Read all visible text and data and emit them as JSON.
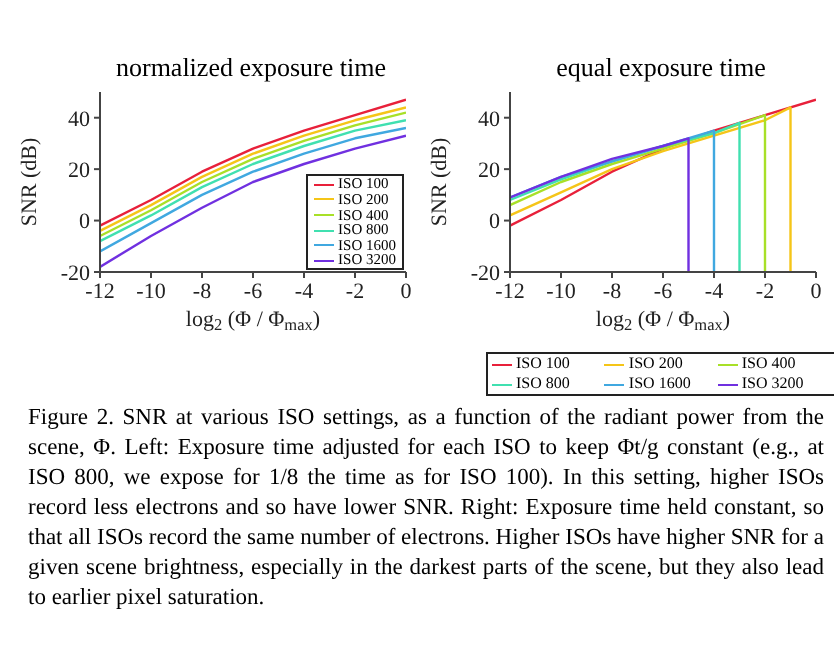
{
  "chart_data": [
    {
      "type": "line",
      "title": "normalized exposure time",
      "xlabel": "log$_{2}$ (Φ / Φ$_{max}$)",
      "ylabel": "SNR (dB)",
      "xlim": [
        -12,
        0
      ],
      "xticks": [
        -12,
        -10,
        -8,
        -6,
        -4,
        -2,
        0
      ],
      "ylim": [
        -20,
        50
      ],
      "yticks": [
        -20,
        0,
        20,
        40
      ],
      "legend": "bottom right",
      "series": [
        {
          "name": "ISO 100",
          "color": "#e8203a",
          "x": [
            -12,
            -10,
            -8,
            -6,
            -4,
            -2,
            0
          ],
          "values": [
            -2,
            8,
            19,
            28,
            35,
            41,
            47
          ]
        },
        {
          "name": "ISO 200",
          "color": "#f5c518",
          "x": [
            -12,
            -10,
            -8,
            -6,
            -4,
            -2,
            0
          ],
          "values": [
            -4,
            6,
            17,
            26,
            33,
            39,
            44
          ]
        },
        {
          "name": "ISO 400",
          "color": "#a8e028",
          "x": [
            -12,
            -10,
            -8,
            -6,
            -4,
            -2,
            0
          ],
          "values": [
            -6,
            4,
            15,
            24,
            31,
            37,
            42
          ]
        },
        {
          "name": "ISO 800",
          "color": "#40e0b0",
          "x": [
            -12,
            -10,
            -8,
            -6,
            -4,
            -2,
            0
          ],
          "values": [
            -8,
            2,
            13,
            22,
            29,
            35,
            39
          ]
        },
        {
          "name": "ISO 1600",
          "color": "#40a8e0",
          "x": [
            -12,
            -10,
            -8,
            -6,
            -4,
            -2,
            0
          ],
          "values": [
            -12,
            -1,
            10,
            19,
            26,
            32,
            36
          ]
        },
        {
          "name": "ISO 3200",
          "color": "#7030e0",
          "x": [
            -12,
            -10,
            -8,
            -6,
            -4,
            -2,
            0
          ],
          "values": [
            -18,
            -6,
            5,
            15,
            22,
            28,
            33
          ]
        }
      ],
      "annotations": [
        "Figure 2. SNR at various ISO settings, as a function of the radiant power from the scene, Φ. Left: Exposure time adjusted for each ISO to keep Φt/g constant (e.g., at ISO 800, we expose for 1/8 the time as for ISO 100). In this setting, higher ISOs record less electrons and so have lower SNR. Right: Exposure time held constant, so that all ISOs record the same number of electrons. Higher ISOs have higher SNR for a given scene brightness, especially in the darkest parts of the scene, but they also lead to earlier pixel saturation."
      ]
    },
    {
      "type": "line",
      "title": "equal exposure time",
      "xlabel": "log$_{2}$ (Φ / Φ$_{max}$)",
      "ylabel": "SNR (dB)",
      "xlim": [
        -12,
        0
      ],
      "xticks": [
        -12,
        -10,
        -8,
        -6,
        -4,
        -2,
        0
      ],
      "ylim": [
        -20,
        50
      ],
      "yticks": [
        -20,
        0,
        20,
        40
      ],
      "legend": "bottom",
      "series": [
        {
          "name": "ISO 100",
          "color": "#e8203a",
          "x": [
            -12,
            -10,
            -8,
            -6,
            -4,
            -2,
            0
          ],
          "values": [
            -2,
            8,
            19,
            28,
            35,
            41,
            47
          ]
        },
        {
          "name": "ISO 200",
          "color": "#f5c518",
          "x": [
            -12,
            -10,
            -8,
            -6,
            -4,
            -2,
            -1,
            -1
          ],
          "values": [
            2,
            11,
            20,
            27,
            33,
            39,
            44,
            -20
          ]
        },
        {
          "name": "ISO 400",
          "color": "#a8e028",
          "x": [
            -12,
            -10,
            -8,
            -6,
            -4,
            -2,
            -2
          ],
          "values": [
            6,
            15,
            22,
            28,
            34,
            41,
            -20
          ]
        },
        {
          "name": "ISO 800",
          "color": "#40e0b0",
          "x": [
            -12,
            -10,
            -8,
            -6,
            -4,
            -3,
            -3
          ],
          "values": [
            8,
            16,
            23,
            29,
            34,
            38,
            -20
          ]
        },
        {
          "name": "ISO 1600",
          "color": "#40a8e0",
          "x": [
            -12,
            -10,
            -8,
            -6,
            -4,
            -4
          ],
          "values": [
            9,
            17,
            23,
            29,
            35,
            -20
          ]
        },
        {
          "name": "ISO 3200",
          "color": "#7030e0",
          "x": [
            -12,
            -10,
            -8,
            -6,
            -5,
            -5
          ],
          "values": [
            9,
            17,
            24,
            29,
            32,
            -20
          ]
        }
      ]
    }
  ]
}
